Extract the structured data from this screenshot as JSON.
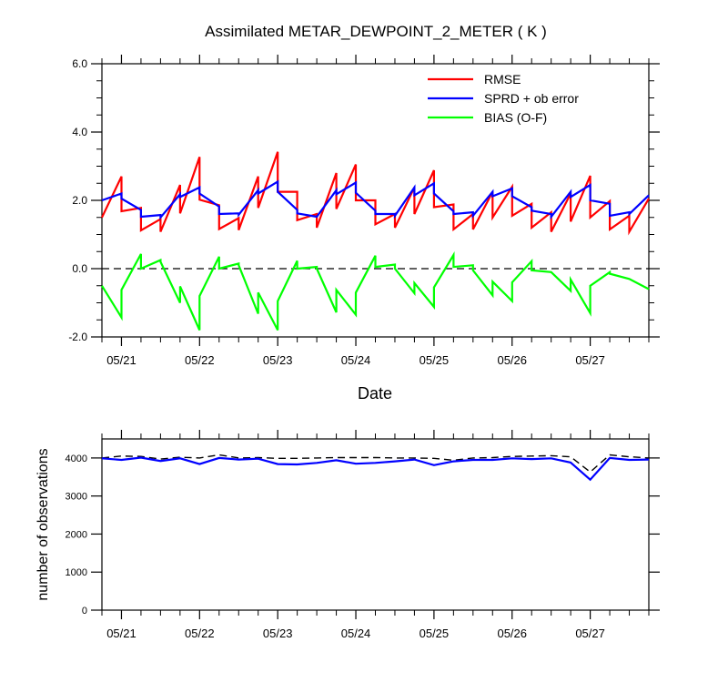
{
  "chart_data": [
    {
      "type": "line",
      "title": "Assimilated METAR_DEWPOINT_2_METER ( K )",
      "xlabel": "Date",
      "ylabel": "",
      "xlim": [
        0,
        7.0
      ],
      "ylim": [
        -2.0,
        6.0
      ],
      "x_ticks": [
        {
          "x": 0.25,
          "label": "05/21"
        },
        {
          "x": 1.25,
          "label": "05/22"
        },
        {
          "x": 2.25,
          "label": "05/23"
        },
        {
          "x": 3.25,
          "label": "05/24"
        },
        {
          "x": 4.25,
          "label": "05/25"
        },
        {
          "x": 5.25,
          "label": "05/26"
        },
        {
          "x": 6.25,
          "label": "05/27"
        }
      ],
      "y_ticks": [
        {
          "y": -2.0,
          "label": "-2.0"
        },
        {
          "y": 0.0,
          "label": "0.0"
        },
        {
          "y": 2.0,
          "label": "2.0"
        },
        {
          "y": 4.0,
          "label": "4.0"
        },
        {
          "y": 6.0,
          "label": "6.0"
        }
      ],
      "legend_position": "top-right",
      "zero_line": true,
      "series": [
        {
          "name": "RMSE",
          "color": "#ff0000",
          "points": [
            [
              0.0,
              1.5
            ],
            [
              0.25,
              2.7
            ],
            [
              0.25,
              1.68
            ],
            [
              0.5,
              1.78
            ],
            [
              0.5,
              1.12
            ],
            [
              0.75,
              1.45
            ],
            [
              0.75,
              1.08
            ],
            [
              1.0,
              2.45
            ],
            [
              1.0,
              1.62
            ],
            [
              1.25,
              3.27
            ],
            [
              1.25,
              2.02
            ],
            [
              1.5,
              1.86
            ],
            [
              1.5,
              1.16
            ],
            [
              1.75,
              1.48
            ],
            [
              1.75,
              1.13
            ],
            [
              2.0,
              2.7
            ],
            [
              2.0,
              1.78
            ],
            [
              2.25,
              3.42
            ],
            [
              2.25,
              2.25
            ],
            [
              2.5,
              2.25
            ],
            [
              2.5,
              1.42
            ],
            [
              2.75,
              1.6
            ],
            [
              2.75,
              1.2
            ],
            [
              3.0,
              2.8
            ],
            [
              3.0,
              1.75
            ],
            [
              3.25,
              3.05
            ],
            [
              3.25,
              2.0
            ],
            [
              3.5,
              2.0
            ],
            [
              3.5,
              1.3
            ],
            [
              3.75,
              1.6
            ],
            [
              3.75,
              1.2
            ],
            [
              4.0,
              2.38
            ],
            [
              4.0,
              1.6
            ],
            [
              4.25,
              2.88
            ],
            [
              4.25,
              1.8
            ],
            [
              4.5,
              1.88
            ],
            [
              4.5,
              1.15
            ],
            [
              4.75,
              1.6
            ],
            [
              4.75,
              1.15
            ],
            [
              5.0,
              2.25
            ],
            [
              5.0,
              1.5
            ],
            [
              5.25,
              2.4
            ],
            [
              5.25,
              1.55
            ],
            [
              5.5,
              1.9
            ],
            [
              5.5,
              1.2
            ],
            [
              5.75,
              1.65
            ],
            [
              5.75,
              1.08
            ],
            [
              6.0,
              2.2
            ],
            [
              6.0,
              1.38
            ],
            [
              6.25,
              2.72
            ],
            [
              6.25,
              1.5
            ],
            [
              6.5,
              1.98
            ],
            [
              6.5,
              1.15
            ],
            [
              6.75,
              1.55
            ],
            [
              6.75,
              1.08
            ],
            [
              7.0,
              2.05
            ]
          ]
        },
        {
          "name": "SPRD + ob error",
          "color": "#0000ff",
          "points": [
            [
              0.0,
              2.0
            ],
            [
              0.25,
              2.2
            ],
            [
              0.25,
              2.05
            ],
            [
              0.5,
              1.72
            ],
            [
              0.5,
              1.52
            ],
            [
              0.75,
              1.57
            ],
            [
              0.75,
              1.5
            ],
            [
              1.0,
              2.18
            ],
            [
              1.0,
              2.1
            ],
            [
              1.25,
              2.38
            ],
            [
              1.25,
              2.2
            ],
            [
              1.5,
              1.82
            ],
            [
              1.5,
              1.6
            ],
            [
              1.75,
              1.62
            ],
            [
              1.75,
              1.58
            ],
            [
              2.0,
              2.3
            ],
            [
              2.0,
              2.2
            ],
            [
              2.25,
              2.55
            ],
            [
              2.25,
              2.25
            ],
            [
              2.5,
              1.72
            ],
            [
              2.5,
              1.62
            ],
            [
              2.75,
              1.52
            ],
            [
              2.75,
              1.52
            ],
            [
              3.0,
              2.3
            ],
            [
              3.0,
              2.18
            ],
            [
              3.25,
              2.52
            ],
            [
              3.25,
              2.22
            ],
            [
              3.5,
              1.7
            ],
            [
              3.5,
              1.6
            ],
            [
              3.75,
              1.6
            ],
            [
              3.75,
              1.55
            ],
            [
              4.0,
              2.38
            ],
            [
              4.0,
              2.15
            ],
            [
              4.25,
              2.5
            ],
            [
              4.25,
              2.2
            ],
            [
              4.5,
              1.68
            ],
            [
              4.5,
              1.6
            ],
            [
              4.75,
              1.65
            ],
            [
              4.75,
              1.55
            ],
            [
              5.0,
              2.25
            ],
            [
              5.0,
              2.12
            ],
            [
              5.25,
              2.35
            ],
            [
              5.25,
              2.12
            ],
            [
              5.5,
              1.8
            ],
            [
              5.5,
              1.7
            ],
            [
              5.75,
              1.6
            ],
            [
              5.75,
              1.52
            ],
            [
              6.0,
              2.25
            ],
            [
              6.0,
              2.1
            ],
            [
              6.25,
              2.45
            ],
            [
              6.25,
              2.0
            ],
            [
              6.5,
              1.9
            ],
            [
              6.5,
              1.55
            ],
            [
              6.75,
              1.65
            ],
            [
              6.75,
              1.6
            ],
            [
              7.0,
              2.15
            ]
          ]
        },
        {
          "name": "BIAS (O-F)",
          "color": "#00ff00",
          "points": [
            [
              0.0,
              -0.5
            ],
            [
              0.25,
              -1.43
            ],
            [
              0.25,
              -0.62
            ],
            [
              0.5,
              0.43
            ],
            [
              0.5,
              0.0
            ],
            [
              0.75,
              0.25
            ],
            [
              0.75,
              0.2
            ],
            [
              1.0,
              -1.0
            ],
            [
              1.0,
              -0.52
            ],
            [
              1.25,
              -1.8
            ],
            [
              1.25,
              -0.8
            ],
            [
              1.5,
              0.35
            ],
            [
              1.5,
              0.0
            ],
            [
              1.75,
              0.15
            ],
            [
              1.75,
              0.1
            ],
            [
              2.0,
              -1.32
            ],
            [
              2.0,
              -0.7
            ],
            [
              2.25,
              -1.8
            ],
            [
              2.25,
              -0.95
            ],
            [
              2.5,
              0.23
            ],
            [
              2.5,
              0.0
            ],
            [
              2.75,
              0.05
            ],
            [
              2.75,
              0.0
            ],
            [
              3.0,
              -1.28
            ],
            [
              3.0,
              -0.62
            ],
            [
              3.25,
              -1.35
            ],
            [
              3.25,
              -0.7
            ],
            [
              3.5,
              0.38
            ],
            [
              3.5,
              0.05
            ],
            [
              3.75,
              0.12
            ],
            [
              3.75,
              0.0
            ],
            [
              4.0,
              -0.72
            ],
            [
              4.0,
              -0.42
            ],
            [
              4.25,
              -1.12
            ],
            [
              4.25,
              -0.55
            ],
            [
              4.5,
              0.4
            ],
            [
              4.5,
              0.05
            ],
            [
              4.75,
              0.1
            ],
            [
              4.75,
              -0.05
            ],
            [
              5.0,
              -0.78
            ],
            [
              5.0,
              -0.38
            ],
            [
              5.25,
              -0.95
            ],
            [
              5.25,
              -0.4
            ],
            [
              5.5,
              0.22
            ],
            [
              5.5,
              -0.05
            ],
            [
              5.75,
              -0.1
            ],
            [
              5.75,
              -0.1
            ],
            [
              6.0,
              -0.65
            ],
            [
              6.0,
              -0.32
            ],
            [
              6.25,
              -1.3
            ],
            [
              6.25,
              -0.5
            ],
            [
              6.5,
              -0.1
            ],
            [
              6.5,
              -0.15
            ],
            [
              6.75,
              -0.3
            ],
            [
              6.75,
              -0.3
            ],
            [
              7.0,
              -0.6
            ]
          ]
        }
      ]
    },
    {
      "type": "line",
      "title": "",
      "xlabel": "",
      "ylabel": "number of observations",
      "xlim": [
        0,
        7.0
      ],
      "ylim": [
        0,
        4500
      ],
      "x_ticks": [
        {
          "x": 0.25,
          "label": "05/21"
        },
        {
          "x": 1.25,
          "label": "05/22"
        },
        {
          "x": 2.25,
          "label": "05/23"
        },
        {
          "x": 3.25,
          "label": "05/24"
        },
        {
          "x": 4.25,
          "label": "05/25"
        },
        {
          "x": 5.25,
          "label": "05/26"
        },
        {
          "x": 6.25,
          "label": "05/27"
        }
      ],
      "y_ticks": [
        {
          "y": 0,
          "label": "0"
        },
        {
          "y": 1000,
          "label": "1000"
        },
        {
          "y": 2000,
          "label": "2000"
        },
        {
          "y": 3000,
          "label": "3000"
        },
        {
          "y": 4000,
          "label": "4000"
        }
      ],
      "series": [
        {
          "style": "dashed",
          "color": "#000000",
          "x": [
            0.0,
            0.25,
            0.5,
            0.75,
            1.0,
            1.25,
            1.5,
            1.75,
            2.0,
            2.25,
            2.5,
            2.75,
            3.0,
            3.25,
            3.5,
            3.75,
            4.0,
            4.25,
            4.5,
            4.75,
            5.0,
            5.25,
            5.5,
            5.75,
            6.0,
            6.25,
            6.5,
            6.75,
            7.0
          ],
          "values": [
            4000,
            4050,
            4040,
            3970,
            4020,
            4000,
            4080,
            4000,
            4010,
            3990,
            3990,
            4000,
            4010,
            4010,
            4010,
            4000,
            4000,
            3990,
            3940,
            4000,
            4010,
            4040,
            4050,
            4060,
            4030,
            3630,
            4080,
            4030,
            4000
          ]
        },
        {
          "style": "solid",
          "color": "#0000ff",
          "x": [
            0.0,
            0.25,
            0.5,
            0.75,
            1.0,
            1.25,
            1.5,
            1.75,
            2.0,
            2.25,
            2.5,
            2.75,
            3.0,
            3.25,
            3.5,
            3.75,
            4.0,
            4.25,
            4.5,
            4.75,
            5.0,
            5.25,
            5.5,
            5.75,
            6.0,
            6.25,
            6.5,
            6.75,
            7.0
          ],
          "values": [
            3990,
            3950,
            4010,
            3920,
            3990,
            3840,
            4000,
            3960,
            3980,
            3840,
            3830,
            3870,
            3940,
            3850,
            3870,
            3910,
            3960,
            3810,
            3910,
            3950,
            3950,
            3990,
            3970,
            3990,
            3880,
            3430,
            4000,
            3950,
            3960
          ]
        }
      ]
    }
  ]
}
